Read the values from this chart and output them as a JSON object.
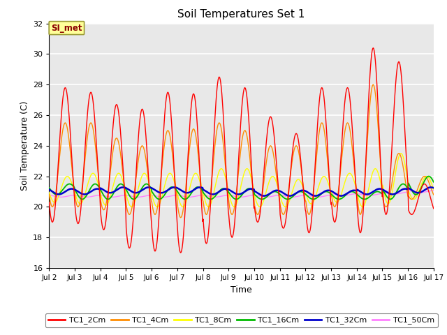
{
  "title": "Soil Temperatures Set 1",
  "xlabel": "Time",
  "ylabel": "Soil Temperature (C)",
  "ylim": [
    16,
    32
  ],
  "yticks": [
    16,
    18,
    20,
    22,
    24,
    26,
    28,
    30,
    32
  ],
  "days": [
    "Jul 2",
    "Jul 3",
    "Jul 4",
    "Jul 5",
    "Jul 6",
    "Jul 7",
    "Jul 8",
    "Jul 9",
    "Jul 10",
    "Jul 11",
    "Jul 12",
    "Jul 13",
    "Jul 14",
    "Jul 15",
    "Jul 16",
    "Jul 17"
  ],
  "line_colors": {
    "TC1_2Cm": "#FF0000",
    "TC1_4Cm": "#FF8C00",
    "TC1_8Cm": "#FFFF00",
    "TC1_16Cm": "#00BB00",
    "TC1_32Cm": "#0000CC",
    "TC1_50Cm": "#FF80FF"
  },
  "legend_label": "SI_met",
  "plot_bg": "#E8E8E8",
  "fig_bg": "#FFFFFF",
  "grid_color": "#FFFFFF",
  "peaks_2cm": [
    27.8,
    27.5,
    26.7,
    26.4,
    27.5,
    27.4,
    28.5,
    27.8,
    25.9,
    24.8,
    27.8,
    27.8,
    30.4,
    29.5,
    21.5
  ],
  "mins_2cm": [
    19.0,
    18.9,
    18.5,
    17.3,
    17.1,
    17.0,
    17.6,
    18.0,
    19.0,
    18.6,
    18.3,
    19.0,
    18.3,
    19.5,
    19.5
  ],
  "peaks_4cm": [
    25.5,
    25.5,
    24.5,
    24.0,
    25.0,
    25.1,
    25.5,
    25.0,
    24.0,
    24.0,
    25.5,
    25.5,
    28.0,
    23.5,
    22.0
  ],
  "mins_4cm": [
    20.0,
    20.0,
    19.8,
    19.5,
    19.5,
    19.3,
    19.5,
    19.5,
    19.5,
    19.5,
    19.5,
    20.0,
    19.5,
    20.0,
    20.5
  ],
  "peaks_8cm": [
    22.0,
    22.2,
    22.2,
    22.2,
    22.2,
    22.2,
    22.5,
    22.5,
    22.0,
    21.8,
    22.0,
    22.2,
    22.5,
    23.5,
    22.0
  ],
  "mins_8cm": [
    20.3,
    20.2,
    20.1,
    20.0,
    20.0,
    20.0,
    20.0,
    20.0,
    20.0,
    20.0,
    20.2,
    20.3,
    20.0,
    20.2,
    20.5
  ],
  "peaks_16cm": [
    21.5,
    21.5,
    21.5,
    21.5,
    21.3,
    21.3,
    21.2,
    21.2,
    21.0,
    21.0,
    21.0,
    21.0,
    21.0,
    21.5,
    22.0
  ],
  "mins_16cm": [
    20.8,
    20.5,
    20.5,
    20.5,
    20.5,
    20.5,
    20.5,
    20.5,
    20.5,
    20.5,
    20.5,
    20.5,
    20.5,
    20.5,
    20.8
  ],
  "base_32": [
    21.0,
    21.0,
    21.1,
    21.1,
    21.1,
    21.1,
    21.0,
    21.0,
    20.9,
    20.9,
    20.9,
    20.9,
    21.0,
    21.0,
    21.1
  ],
  "base_50": [
    20.7,
    20.7,
    20.7,
    20.7,
    20.7,
    20.7,
    20.7,
    20.7,
    20.7,
    20.7,
    20.7,
    20.8,
    20.8,
    20.9,
    21.0
  ]
}
